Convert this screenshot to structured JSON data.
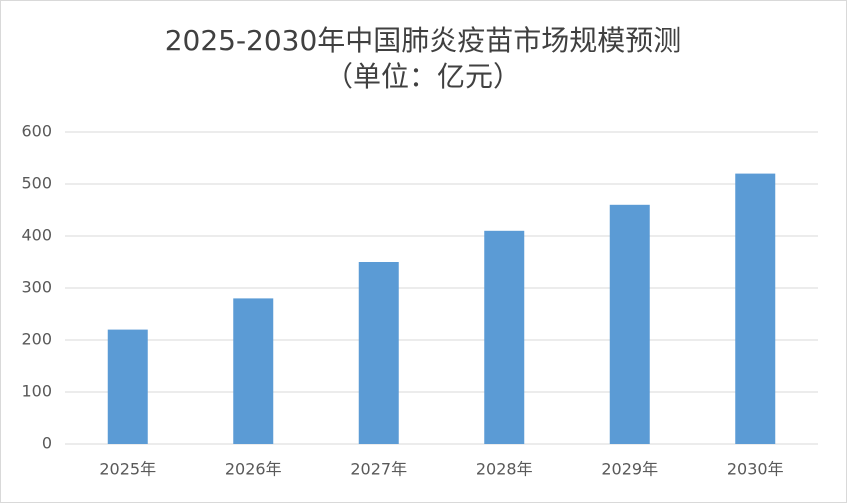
{
  "chart_data": {
    "type": "bar",
    "title": "2025-2030年中国肺炎疫苗市场规模预测",
    "subtitle": "（单位：亿元）",
    "categories": [
      "2025年",
      "2026年",
      "2027年",
      "2028年",
      "2029年",
      "2030年"
    ],
    "values": [
      220,
      280,
      350,
      410,
      460,
      520
    ],
    "color": "#5b9bd5",
    "ylim": [
      0,
      600
    ],
    "yticks": [
      0,
      100,
      200,
      300,
      400,
      500,
      600
    ],
    "grid": true
  }
}
